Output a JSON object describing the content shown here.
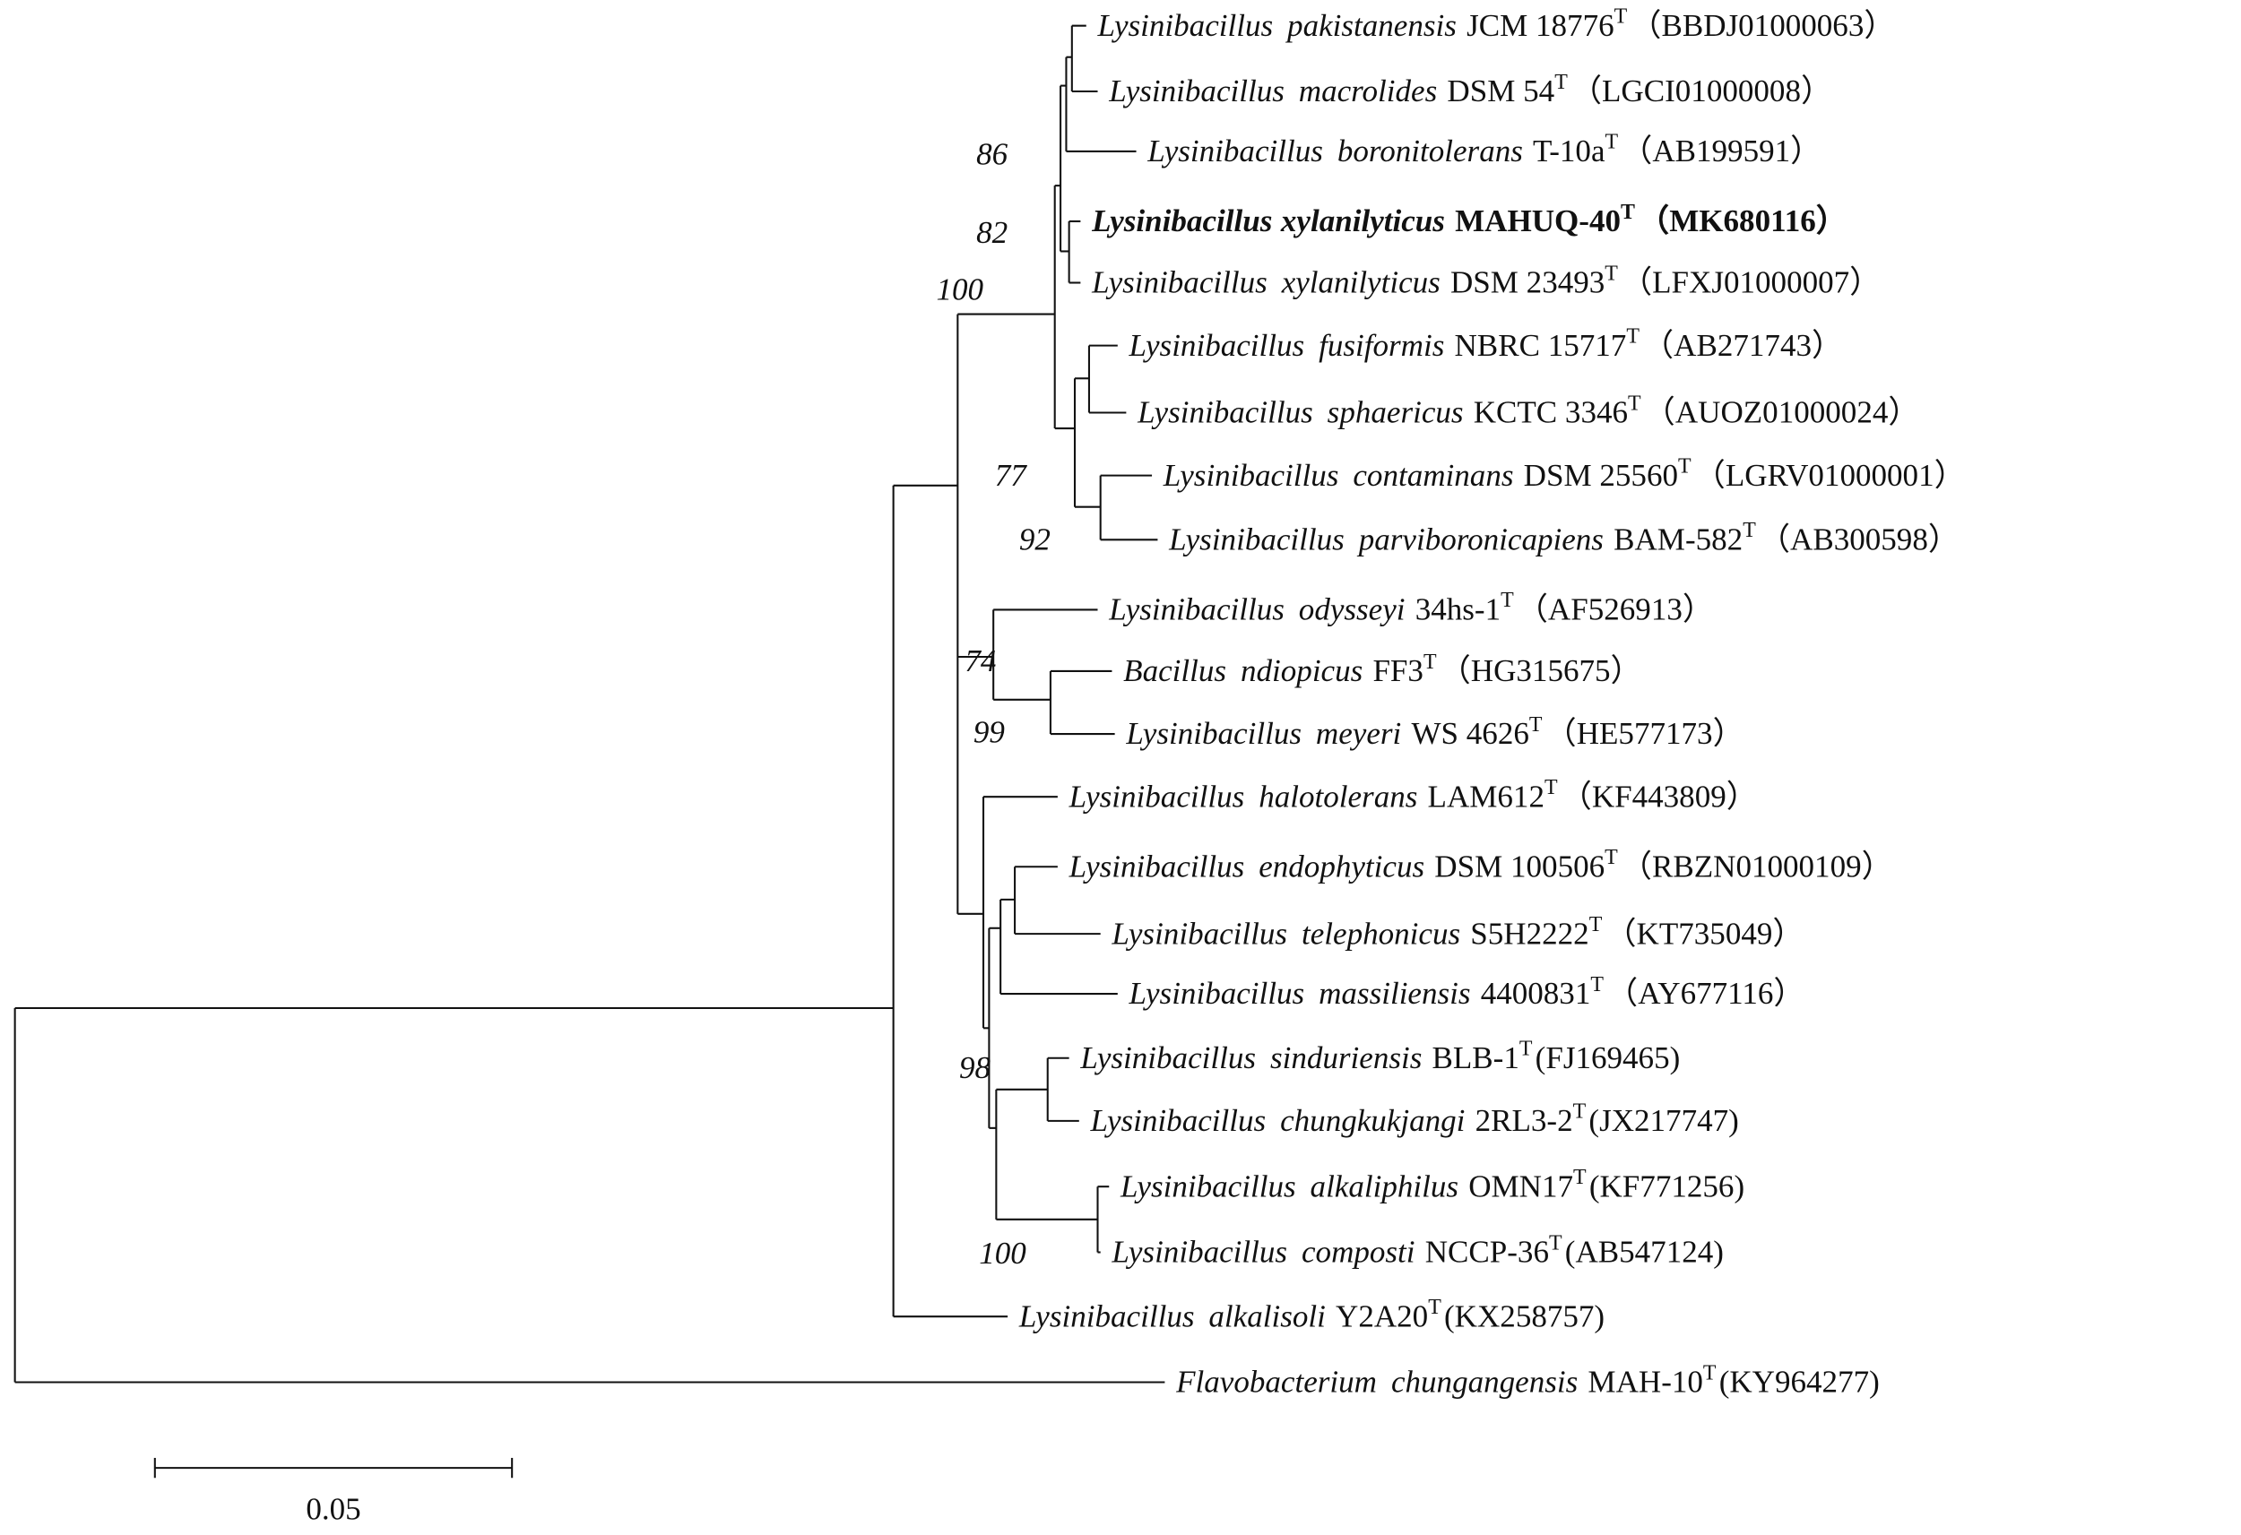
{
  "leaves": [
    {
      "genus": "Lysinibacillus",
      "species": "pakistanensis",
      "strain": "JCM 18776",
      "type_mark": "T",
      "accession": "（BBDJ01000063）"
    },
    {
      "genus": "Lysinibacillus",
      "species": "macrolides",
      "strain": "DSM 54",
      "type_mark": "T",
      "accession": "（LGCI01000008）"
    },
    {
      "genus": "Lysinibacillus",
      "species": "boronitolerans",
      "strain": "T-10a",
      "type_mark": "T",
      "accession": "（AB199591）"
    },
    {
      "genus": "Lysinibacillus",
      "species": "xylanilyticus",
      "strain": "MAHUQ-40",
      "type_mark": "T",
      "accession": "（MK680116）"
    },
    {
      "genus": "Lysinibacillus",
      "species": "xylanilyticus",
      "strain": "DSM 23493",
      "type_mark": "T",
      "accession": "（LFXJ01000007）"
    },
    {
      "genus": "Lysinibacillus",
      "species": "fusiformis",
      "strain": "NBRC 15717",
      "type_mark": "T",
      "accession": "（AB271743）"
    },
    {
      "genus": "Lysinibacillus",
      "species": "sphaericus",
      "strain": "KCTC 3346",
      "type_mark": "T",
      "accession": "（AUOZ01000024）"
    },
    {
      "genus": "Lysinibacillus",
      "species": "contaminans",
      "strain": "DSM 25560",
      "type_mark": "T",
      "accession": "（LGRV01000001）"
    },
    {
      "genus": "Lysinibacillus",
      "species": "parviboronicapiens",
      "strain": "BAM-582",
      "type_mark": "T",
      "accession": "（AB300598）"
    },
    {
      "genus": "Lysinibacillus",
      "species": "odysseyi",
      "strain": "34hs-1",
      "type_mark": "T",
      "accession": "（AF526913）"
    },
    {
      "genus": "Bacillus",
      "species": "ndiopicus",
      "strain": "FF3",
      "type_mark": "T",
      "accession": "（HG315675）"
    },
    {
      "genus": "Lysinibacillus",
      "species": "meyeri",
      "strain": "WS 4626",
      "type_mark": "T",
      "accession": "（HE577173）"
    },
    {
      "genus": "Lysinibacillus",
      "species": "halotolerans",
      "strain": "LAM612",
      "type_mark": "T",
      "accession": "（KF443809）"
    },
    {
      "genus": "Lysinibacillus",
      "species": "endophyticus",
      "strain": "DSM 100506",
      "type_mark": "T",
      "accession": "（RBZN01000109）"
    },
    {
      "genus": "Lysinibacillus",
      "species": "telephonicus",
      "strain": "S5H2222",
      "type_mark": "T",
      "accession": "（KT735049）"
    },
    {
      "genus": "Lysinibacillus",
      "species": "massiliensis",
      "strain": "4400831",
      "type_mark": "T",
      "accession": "（AY677116）"
    },
    {
      "genus": "Lysinibacillus",
      "species": "sinduriensis",
      "strain": "BLB-1",
      "type_mark": "T",
      "accession": "(FJ169465)"
    },
    {
      "genus": "Lysinibacillus",
      "species": "chungkukjangi",
      "strain": "2RL3-2",
      "type_mark": "T",
      "accession": "(JX217747)"
    },
    {
      "genus": "Lysinibacillus",
      "species": "alkaliphilus",
      "strain": "OMN17",
      "type_mark": "T",
      "accession": "(KF771256)"
    },
    {
      "genus": "Lysinibacillus",
      "species": "composti",
      "strain": "NCCP-36",
      "type_mark": "T",
      "accession": "(AB547124)"
    },
    {
      "genus": "Lysinibacillus",
      "species": "alkalisoli",
      "strain": "Y2A20",
      "type_mark": "T",
      "accession": "(KX258757)"
    },
    {
      "genus": "Flavobacterium",
      "species": "chungangensis",
      "strain": "MAH-10",
      "type_mark": "T",
      "accession": "(KY964277)"
    }
  ],
  "bootstrap": [
    86,
    82,
    100,
    77,
    92,
    74,
    99,
    98,
    100
  ],
  "scale_bar": {
    "label": "0.05"
  }
}
